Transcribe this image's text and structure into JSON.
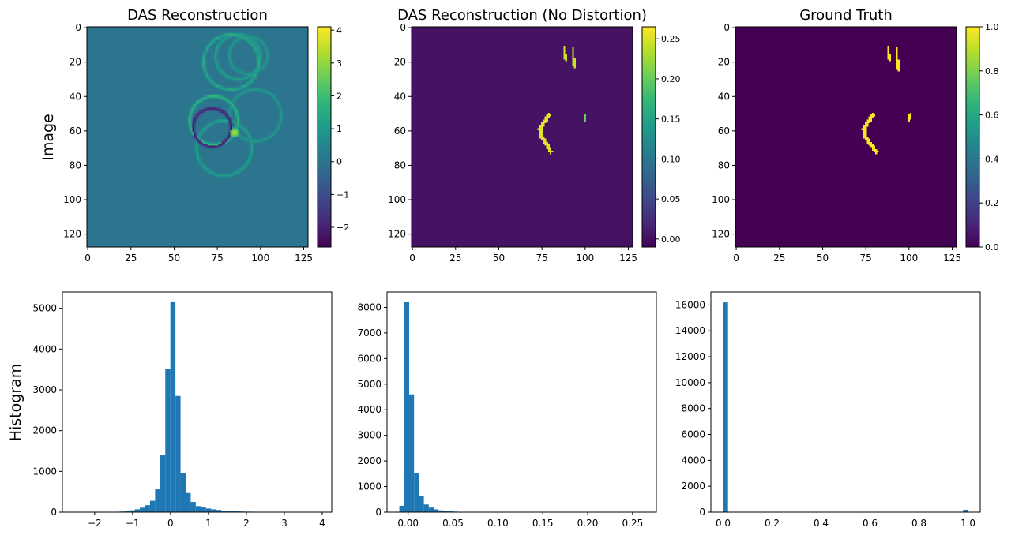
{
  "figure": {
    "row_labels": [
      "Image",
      "Histogram"
    ]
  },
  "colors": {
    "viridis": [
      "#440154",
      "#482878",
      "#3e4989",
      "#31688e",
      "#26828e",
      "#1f9e89",
      "#35b779",
      "#6ece58",
      "#b5de2b",
      "#fde725"
    ],
    "hist_bar": "#1f77b4"
  },
  "chart_data": [
    {
      "type": "heatmap",
      "title": "DAS Reconstruction",
      "row_label": "Image",
      "xlim": [
        0,
        127
      ],
      "ylim": [
        127,
        0
      ],
      "x_ticks": [
        0,
        25,
        50,
        75,
        100,
        125
      ],
      "y_ticks": [
        0,
        20,
        40,
        60,
        80,
        100,
        120
      ],
      "colorbar": {
        "min": -2.6,
        "max": 4.1,
        "ticks": [
          -2,
          -1,
          0,
          1,
          2,
          3,
          4
        ]
      },
      "background_value": 0,
      "features": [
        {
          "kind": "ring",
          "cx": 87,
          "cy": 17,
          "r": 13,
          "value": 1.2
        },
        {
          "kind": "ring",
          "cx": 83,
          "cy": 20,
          "r": 16,
          "value": 1.5
        },
        {
          "kind": "ring",
          "cx": 93,
          "cy": 16,
          "r": 11,
          "value": 1.0
        },
        {
          "kind": "ring",
          "cx": 73,
          "cy": 54,
          "r": 14,
          "value": 1.8
        },
        {
          "kind": "ring",
          "cx": 79,
          "cy": 70,
          "r": 16,
          "value": 1.2
        },
        {
          "kind": "ring",
          "cx": 97,
          "cy": 51,
          "r": 15,
          "value": 1.0
        },
        {
          "kind": "ring",
          "cx": 72,
          "cy": 58,
          "r": 11,
          "value": -2.2
        },
        {
          "kind": "blob",
          "cx": 85,
          "cy": 61,
          "r": 2.5,
          "value": 3.8
        }
      ]
    },
    {
      "type": "heatmap",
      "title": "DAS Reconstruction (No Distortion)",
      "xlim": [
        0,
        127
      ],
      "ylim": [
        127,
        0
      ],
      "x_ticks": [
        0,
        25,
        50,
        75,
        100,
        125
      ],
      "y_ticks": [
        0,
        20,
        40,
        60,
        80,
        100,
        120
      ],
      "colorbar": {
        "min": -0.01,
        "max": 0.265,
        "ticks": [
          0.0,
          0.05,
          0.1,
          0.15,
          0.2,
          0.25
        ]
      },
      "background_value": 0.004,
      "features": [
        {
          "kind": "stroke",
          "points": [
            [
              88,
              11
            ],
            [
              88,
              15
            ],
            [
              89,
              19
            ]
          ],
          "width": 1.8,
          "value": 0.24
        },
        {
          "kind": "stroke",
          "points": [
            [
              93,
              12
            ],
            [
              93,
              17
            ],
            [
              94,
              23
            ]
          ],
          "width": 1.8,
          "value": 0.24
        },
        {
          "kind": "stroke",
          "points": [
            [
              79,
              51
            ],
            [
              76,
              55
            ],
            [
              74,
              59
            ],
            [
              75,
              64
            ],
            [
              78,
              68
            ],
            [
              80,
              72
            ]
          ],
          "width": 2.2,
          "value": 0.25
        },
        {
          "kind": "stroke",
          "points": [
            [
              100,
              51
            ],
            [
              100,
              54
            ]
          ],
          "width": 1.6,
          "value": 0.2
        }
      ]
    },
    {
      "type": "heatmap",
      "title": "Ground Truth",
      "xlim": [
        0,
        127
      ],
      "ylim": [
        127,
        0
      ],
      "x_ticks": [
        0,
        25,
        50,
        75,
        100,
        125
      ],
      "y_ticks": [
        0,
        20,
        40,
        60,
        80,
        100,
        120
      ],
      "colorbar": {
        "min": 0,
        "max": 1,
        "ticks": [
          0.0,
          0.2,
          0.4,
          0.6,
          0.8,
          1.0
        ]
      },
      "background_value": 0,
      "features": [
        {
          "kind": "stroke",
          "points": [
            [
              88,
              11
            ],
            [
              88,
              15
            ],
            [
              89,
              19
            ]
          ],
          "width": 1.8,
          "value": 1
        },
        {
          "kind": "stroke",
          "points": [
            [
              93,
              12
            ],
            [
              93,
              18
            ],
            [
              94,
              25
            ]
          ],
          "width": 1.8,
          "value": 1
        },
        {
          "kind": "stroke",
          "points": [
            [
              79,
              51
            ],
            [
              76,
              55
            ],
            [
              74,
              59
            ],
            [
              75,
              64
            ],
            [
              78,
              68
            ],
            [
              81,
              72
            ]
          ],
          "width": 2.2,
          "value": 1
        },
        {
          "kind": "stroke",
          "points": [
            [
              101,
              50
            ],
            [
              100,
              54
            ]
          ],
          "width": 1.6,
          "value": 1
        }
      ]
    },
    {
      "type": "bar",
      "row_label": "Histogram",
      "xlim": [
        -2.85,
        4.25
      ],
      "ylim": [
        0,
        5400
      ],
      "x_ticks": [
        -2,
        -1,
        0,
        1,
        2,
        3,
        4
      ],
      "y_ticks": [
        0,
        1000,
        2000,
        3000,
        4000,
        5000
      ],
      "bin_start": -2.55,
      "bin_width": 0.134,
      "counts": [
        0,
        0,
        0,
        0,
        0,
        0,
        2,
        4,
        8,
        15,
        30,
        45,
        70,
        110,
        170,
        280,
        560,
        1400,
        3520,
        5150,
        2850,
        950,
        470,
        250,
        150,
        115,
        90,
        70,
        55,
        40,
        30,
        22,
        18,
        14,
        12,
        10,
        8,
        5,
        4,
        3,
        2,
        2,
        1,
        1,
        1,
        1,
        1,
        0,
        1,
        1
      ]
    },
    {
      "type": "bar",
      "xlim": [
        -0.0235,
        0.2765
      ],
      "ylim": [
        0,
        8600
      ],
      "x_ticks": [
        0.0,
        0.05,
        0.1,
        0.15,
        0.2,
        0.25
      ],
      "y_ticks": [
        0,
        1000,
        2000,
        3000,
        4000,
        5000,
        6000,
        7000,
        8000
      ],
      "bin_start": -0.0098,
      "bin_width": 0.00546,
      "counts": [
        250,
        8200,
        4600,
        1520,
        640,
        300,
        180,
        110,
        70,
        45,
        30,
        20,
        15,
        10,
        8,
        6,
        5,
        4,
        3,
        3,
        2,
        2,
        2,
        2,
        1,
        1,
        1,
        1,
        1,
        1,
        1,
        1,
        1,
        1,
        1,
        1,
        1,
        1,
        1,
        1,
        1,
        1,
        1,
        1,
        1,
        1,
        1,
        1,
        1,
        1
      ]
    },
    {
      "type": "bar",
      "xlim": [
        -0.05,
        1.05
      ],
      "ylim": [
        0,
        17000
      ],
      "x_ticks": [
        0.0,
        0.2,
        0.4,
        0.6,
        0.8,
        1.0
      ],
      "y_ticks": [
        0,
        2000,
        4000,
        6000,
        8000,
        10000,
        12000,
        14000,
        16000
      ],
      "bin_start": 0,
      "bin_width": 0.02,
      "counts": [
        16200,
        0,
        0,
        0,
        0,
        0,
        0,
        0,
        0,
        0,
        0,
        0,
        0,
        0,
        0,
        0,
        0,
        0,
        0,
        0,
        0,
        0,
        0,
        0,
        0,
        0,
        0,
        0,
        0,
        0,
        0,
        0,
        0,
        0,
        0,
        0,
        0,
        0,
        0,
        0,
        0,
        0,
        0,
        0,
        0,
        0,
        0,
        0,
        0,
        184
      ]
    }
  ]
}
